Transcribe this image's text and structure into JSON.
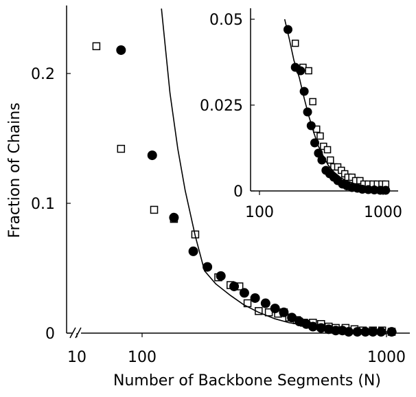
{
  "chart_data": [
    {
      "type": "scatter",
      "title": "",
      "xlabel": "Number of Backbone Segments (N)",
      "ylabel": "Fraction of Chains",
      "x_scale": "log",
      "x_axis_break": true,
      "xlim": [
        50,
        1100
      ],
      "ylim": [
        0,
        0.25
      ],
      "xticks": [
        {
          "value": 10,
          "label": "10"
        },
        {
          "value": 100,
          "label": "100"
        },
        {
          "value": 1000,
          "label": "1000"
        }
      ],
      "yticks": [
        {
          "value": 0,
          "label": "0"
        },
        {
          "value": 0.1,
          "label": "0.1"
        },
        {
          "value": 0.2,
          "label": "0.2"
        }
      ],
      "grid": false,
      "series": [
        {
          "marker": "filled-circle",
          "color": "#000000",
          "points": [
            [
              82,
              0.218
            ],
            [
              110,
              0.137
            ],
            [
              135,
              0.089
            ],
            [
              162,
              0.063
            ],
            [
              185,
              0.051
            ],
            [
              210,
              0.044
            ],
            [
              238,
              0.036
            ],
            [
              262,
              0.031
            ],
            [
              290,
              0.027
            ],
            [
              320,
              0.023
            ],
            [
              350,
              0.019
            ],
            [
              380,
              0.016
            ],
            [
              410,
              0.012
            ],
            [
              440,
              0.009
            ],
            [
              470,
              0.007
            ],
            [
              500,
              0.005
            ],
            [
              540,
              0.004
            ],
            [
              580,
              0.003
            ],
            [
              620,
              0.002
            ],
            [
              660,
              0.002
            ],
            [
              700,
              0.001
            ],
            [
              760,
              0.001
            ],
            [
              820,
              0.001
            ],
            [
              880,
              0.001
            ],
            [
              950,
              0.001
            ],
            [
              1050,
              0.001
            ]
          ]
        },
        {
          "marker": "open-square",
          "color": "#000000",
          "points": [
            [
              65,
              0.221
            ],
            [
              82,
              0.142
            ],
            [
              112,
              0.095
            ],
            [
              135,
              0.088
            ],
            [
              165,
              0.076
            ],
            [
              205,
              0.043
            ],
            [
              230,
              0.037
            ],
            [
              250,
              0.036
            ],
            [
              270,
              0.023
            ],
            [
              300,
              0.017
            ],
            [
              330,
              0.016
            ],
            [
              360,
              0.015
            ],
            [
              380,
              0.016
            ],
            [
              400,
              0.012
            ],
            [
              430,
              0.01
            ],
            [
              460,
              0.008
            ],
            [
              500,
              0.008
            ],
            [
              540,
              0.007
            ],
            [
              580,
              0.005
            ],
            [
              620,
              0.004
            ],
            [
              680,
              0.004
            ],
            [
              740,
              0.003
            ],
            [
              800,
              0.002
            ],
            [
              880,
              0.002
            ],
            [
              960,
              0.002
            ],
            [
              1050,
              0.001
            ]
          ]
        },
        {
          "type": "line",
          "color": "#000000",
          "points": [
            [
              120,
              0.25
            ],
            [
              130,
              0.185
            ],
            [
              140,
              0.142
            ],
            [
              150,
              0.11
            ],
            [
              165,
              0.075
            ],
            [
              180,
              0.048
            ],
            [
              200,
              0.038
            ],
            [
              230,
              0.029
            ],
            [
              260,
              0.022
            ],
            [
              300,
              0.016
            ],
            [
              350,
              0.011
            ],
            [
              400,
              0.008
            ],
            [
              500,
              0.005
            ],
            [
              600,
              0.003
            ],
            [
              800,
              0.002
            ],
            [
              1000,
              0.001
            ],
            [
              1100,
              0.001
            ]
          ]
        }
      ]
    },
    {
      "type": "scatter",
      "title": "",
      "xlabel": "",
      "ylabel": "",
      "x_scale": "log",
      "xlim": [
        100,
        1100
      ],
      "ylim": [
        0,
        0.05
      ],
      "xticks": [
        {
          "value": 100,
          "label": "100"
        },
        {
          "value": 1000,
          "label": "1000"
        }
      ],
      "yticks": [
        {
          "value": 0,
          "label": "0"
        },
        {
          "value": 0.025,
          "label": "0.025"
        },
        {
          "value": 0.05,
          "label": "0.05"
        }
      ],
      "grid": false,
      "series": [
        {
          "marker": "filled-circle",
          "color": "#000000",
          "points": [
            [
              170,
              0.047
            ],
            [
              195,
              0.036
            ],
            [
              215,
              0.035
            ],
            [
              230,
              0.029
            ],
            [
              245,
              0.023
            ],
            [
              262,
              0.019
            ],
            [
              280,
              0.014
            ],
            [
              300,
              0.011
            ],
            [
              320,
              0.009
            ],
            [
              345,
              0.006
            ],
            [
              370,
              0.005
            ],
            [
              400,
              0.004
            ],
            [
              430,
              0.003
            ],
            [
              470,
              0.002
            ],
            [
              510,
              0.0015
            ],
            [
              560,
              0.001
            ],
            [
              620,
              0.0008
            ],
            [
              680,
              0.0005
            ],
            [
              760,
              0.0004
            ],
            [
              850,
              0.0003
            ],
            [
              950,
              0.0002
            ],
            [
              1050,
              0.0002
            ]
          ]
        },
        {
          "marker": "open-square",
          "color": "#000000",
          "points": [
            [
              195,
              0.043
            ],
            [
              225,
              0.036
            ],
            [
              250,
              0.035
            ],
            [
              270,
              0.026
            ],
            [
              290,
              0.018
            ],
            [
              310,
              0.016
            ],
            [
              330,
              0.013
            ],
            [
              355,
              0.012
            ],
            [
              375,
              0.009
            ],
            [
              400,
              0.007
            ],
            [
              430,
              0.007
            ],
            [
              460,
              0.006
            ],
            [
              490,
              0.005
            ],
            [
              520,
              0.004
            ],
            [
              560,
              0.004
            ],
            [
              600,
              0.003
            ],
            [
              650,
              0.003
            ],
            [
              700,
              0.002
            ],
            [
              760,
              0.002
            ],
            [
              830,
              0.002
            ],
            [
              900,
              0.002
            ],
            [
              980,
              0.002
            ],
            [
              1050,
              0.002
            ]
          ]
        },
        {
          "type": "line",
          "color": "#000000",
          "points": [
            [
              160,
              0.05
            ],
            [
              175,
              0.044
            ],
            [
              190,
              0.038
            ],
            [
              210,
              0.033
            ],
            [
              230,
              0.027
            ],
            [
              250,
              0.022
            ],
            [
              275,
              0.017
            ],
            [
              300,
              0.013
            ],
            [
              330,
              0.01
            ],
            [
              360,
              0.0075
            ],
            [
              400,
              0.0055
            ],
            [
              450,
              0.004
            ],
            [
              500,
              0.003
            ],
            [
              600,
              0.002
            ],
            [
              700,
              0.0012
            ],
            [
              850,
              0.0007
            ],
            [
              1000,
              0.0005
            ],
            [
              1100,
              0.0004
            ]
          ]
        }
      ]
    }
  ]
}
